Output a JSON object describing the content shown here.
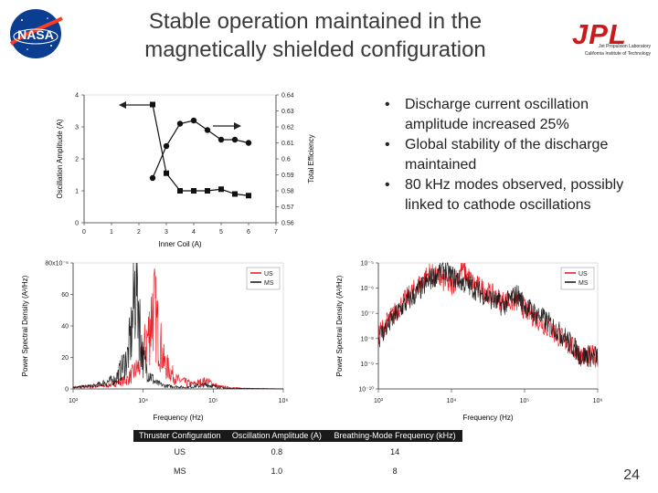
{
  "slide": {
    "title_line1": "Stable operation maintained in the",
    "title_line2": "magnetically shielded configuration",
    "page_number": "24"
  },
  "logos": {
    "left": "NASA",
    "right": "JPL",
    "right_sub1": "Jet Propulsion Laboratory",
    "right_sub2": "California Institute of Technology"
  },
  "bullets": [
    "Discharge current oscillation amplitude increased 25%",
    "Global stability of the discharge maintained",
    "80 kHz modes observed, possibly linked to cathode oscillations"
  ],
  "table": {
    "headers": [
      "Thruster Configuration",
      "Oscillation Amplitude (A)",
      "Breathing-Mode Frequency (kHz)"
    ],
    "rows": [
      [
        "US",
        "0.8",
        "14"
      ],
      [
        "MS",
        "1.0",
        "8"
      ]
    ]
  },
  "chart_data": [
    {
      "type": "scatter",
      "xlabel": "Inner Coil (A)",
      "ylabel": "Oscillation Amplitude (A)",
      "y2label": "Total Efficiency",
      "xlim": [
        0,
        7
      ],
      "ylim": [
        0,
        4
      ],
      "y2lim": [
        0.56,
        0.64
      ],
      "xticks": [
        "0",
        "1",
        "2",
        "3",
        "4",
        "5",
        "6",
        "7"
      ],
      "yticks": [
        "0",
        "1",
        "2",
        "3",
        "4"
      ],
      "y2ticks": [
        "0.56",
        "0.57",
        "0.58",
        "0.59",
        "0.6",
        "0.61",
        "0.62",
        "0.63",
        "0.64"
      ],
      "series": [
        {
          "axis": "left",
          "marker": "circle",
          "x": [
            2.5,
            3,
            3.5,
            4,
            4.5,
            5,
            5.5,
            6
          ],
          "y": [
            1.4,
            2.4,
            3.1,
            3.2,
            2.9,
            2.6,
            2.6,
            2.5
          ]
        },
        {
          "axis": "right",
          "marker": "square",
          "x": [
            2.5,
            3,
            3.5,
            4,
            4.5,
            5,
            5.5,
            6
          ],
          "y": [
            0.634,
            0.591,
            0.58,
            0.58,
            0.58,
            0.581,
            0.578,
            0.577
          ]
        }
      ],
      "grid": false
    },
    {
      "type": "line",
      "xlabel": "Frequency (Hz)",
      "ylabel": "Power Spectral Density (A²/Hz)",
      "xscale": "log",
      "xlim": [
        1000,
        1000000
      ],
      "ylim": [
        0,
        8e-05
      ],
      "xticks": [
        "10³",
        "10⁴",
        "10⁵",
        "10⁶"
      ],
      "yticks": [
        "0",
        "20",
        "40",
        "60",
        "80x10⁻⁶"
      ],
      "legend": "top-right",
      "series": [
        {
          "name": "US",
          "color": "#e8141c",
          "x": [
            1000,
            3000,
            6000,
            9000,
            12000,
            14000,
            16000,
            20000,
            30000,
            50000,
            80000,
            120000,
            200000,
            400000,
            1000000
          ],
          "y": [
            1e-06,
            2e-06,
            6e-06,
            1.5e-05,
            3.5e-05,
            5.4e-05,
            3.8e-05,
            1.6e-05,
            6e-06,
            3e-06,
            5e-06,
            1.5e-06,
            6e-07,
            2e-07,
            1e-07
          ]
        },
        {
          "name": "MS",
          "color": "#111111",
          "x": [
            1000,
            2000,
            4000,
            6000,
            7000,
            8000,
            9000,
            10000,
            12000,
            15000,
            20000,
            40000,
            80000,
            150000,
            400000,
            1000000
          ],
          "y": [
            1e-06,
            2e-06,
            6e-06,
            2e-05,
            4e-05,
            7.8e-05,
            4e-05,
            1.8e-05,
            1e-05,
            4e-06,
            2e-06,
            1e-06,
            2.5e-06,
            5e-07,
            2e-07,
            1e-07
          ]
        }
      ]
    },
    {
      "type": "line",
      "xlabel": "Frequency (Hz)",
      "ylabel": "Power Spectral Density (A²/Hz)",
      "xscale": "log",
      "yscale": "log",
      "xlim": [
        1000,
        1000000
      ],
      "ylim": [
        1e-10,
        1e-05
      ],
      "xticks": [
        "10³",
        "10⁴",
        "10⁵",
        "10⁶"
      ],
      "yticks": [
        "10⁻¹⁰",
        "10⁻⁹",
        "10⁻⁸",
        "10⁻⁷",
        "10⁻⁶",
        "10⁻⁵"
      ],
      "legend": "top-right",
      "series": [
        {
          "name": "US",
          "color": "#e8141c",
          "x": [
            1000,
            2000,
            5000,
            10000,
            14000,
            20000,
            50000,
            80000,
            100000,
            200000,
            400000,
            600000
          ],
          "y": [
            1.5e-08,
            2e-07,
            4e-06,
            1.2e-06,
            6e-06,
            1.5e-06,
            3e-07,
            3e-07,
            1.5e-07,
            3e-08,
            6e-09,
            2e-09
          ]
        },
        {
          "name": "MS",
          "color": "#111111",
          "x": [
            1000,
            2000,
            5000,
            8000,
            10000,
            20000,
            50000,
            80000,
            100000,
            200000,
            400000,
            600000
          ],
          "y": [
            1e-08,
            1.5e-07,
            2e-06,
            6e-06,
            3e-06,
            1e-06,
            2e-07,
            6e-07,
            2e-07,
            5e-08,
            8e-09,
            2e-09
          ]
        }
      ]
    }
  ]
}
